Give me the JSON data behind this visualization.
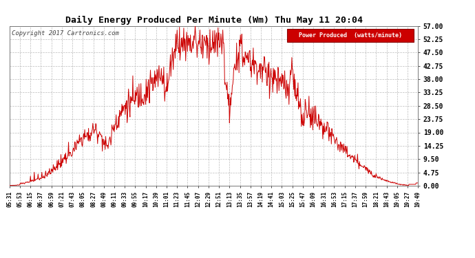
{
  "title": "Daily Energy Produced Per Minute (Wm) Thu May 11 20:04",
  "copyright": "Copyright 2017 Cartronics.com",
  "legend_label": "Power Produced  (watts/minute)",
  "legend_bg": "#cc0000",
  "legend_fg": "#ffffff",
  "line_color": "#cc0000",
  "bg_color": "#ffffff",
  "grid_color": "#aaaaaa",
  "title_color": "#000000",
  "yticks": [
    0.0,
    4.75,
    9.5,
    14.25,
    19.0,
    23.75,
    28.5,
    33.25,
    38.0,
    42.75,
    47.5,
    52.25,
    57.0
  ],
  "ymax": 57.0,
  "ymin": 0.0,
  "xtick_labels": [
    "05:31",
    "05:53",
    "06:15",
    "06:37",
    "06:59",
    "07:21",
    "07:43",
    "08:05",
    "08:27",
    "08:49",
    "09:11",
    "09:33",
    "09:55",
    "10:17",
    "10:39",
    "11:01",
    "11:23",
    "11:45",
    "12:07",
    "12:29",
    "12:51",
    "13:13",
    "13:35",
    "13:57",
    "14:19",
    "14:41",
    "15:03",
    "15:25",
    "15:47",
    "16:09",
    "16:31",
    "16:53",
    "17:15",
    "17:37",
    "17:59",
    "18:21",
    "18:43",
    "19:05",
    "19:27",
    "19:49"
  ]
}
